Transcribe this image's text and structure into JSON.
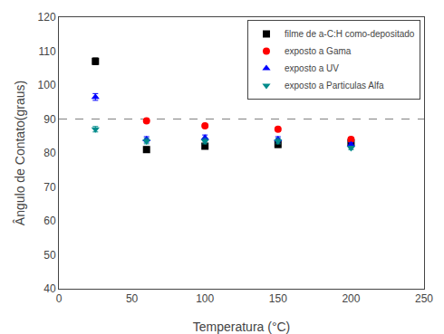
{
  "chart_data": {
    "type": "scatter",
    "xlabel": "Temperatura (°C)",
    "ylabel": "Ângulo de Contato(graus)",
    "xlim": [
      0,
      250
    ],
    "ylim": [
      40,
      120
    ],
    "xticks": [
      0,
      50,
      100,
      150,
      200,
      250
    ],
    "yticks": [
      40,
      50,
      60,
      70,
      80,
      90,
      100,
      110,
      120
    ],
    "grid": false,
    "legend": "upper right",
    "hline": {
      "y": 90,
      "color": "gray",
      "line_style": "dashed"
    },
    "series": [
      {
        "name": "filme de a-C:H como-depositado",
        "color": "#000000",
        "marker": "square",
        "x": [
          25,
          60,
          100,
          150,
          200
        ],
        "values": [
          107.0,
          81.0,
          82.0,
          82.5,
          83.0
        ],
        "yerr": [
          1.0,
          0.8,
          0.8,
          0.8,
          0.8
        ]
      },
      {
        "name": "exposto a Gama",
        "color": "#ff0000",
        "marker": "circle",
        "x": [
          60,
          100,
          150,
          200
        ],
        "values": [
          89.5,
          88.0,
          87.0,
          84.0
        ],
        "yerr": [
          0.5,
          0.5,
          0.5,
          0.5
        ]
      },
      {
        "name": "exposto a UV",
        "color": "#0000ff",
        "marker": "triangle-up",
        "x": [
          25,
          60,
          100,
          150,
          200
        ],
        "values": [
          96.5,
          84.0,
          84.5,
          84.0,
          82.5
        ],
        "yerr": [
          1.0,
          0.8,
          0.8,
          0.8,
          0.5
        ]
      },
      {
        "name": "exposto a Particulas Alfa",
        "color": "#008B8B",
        "marker": "triangle-down",
        "x": [
          25,
          60,
          100,
          150,
          200
        ],
        "values": [
          87.0,
          83.5,
          83.5,
          83.5,
          81.5
        ],
        "yerr": [
          0.8,
          0.8,
          0.8,
          0.8,
          0.5
        ]
      }
    ]
  }
}
